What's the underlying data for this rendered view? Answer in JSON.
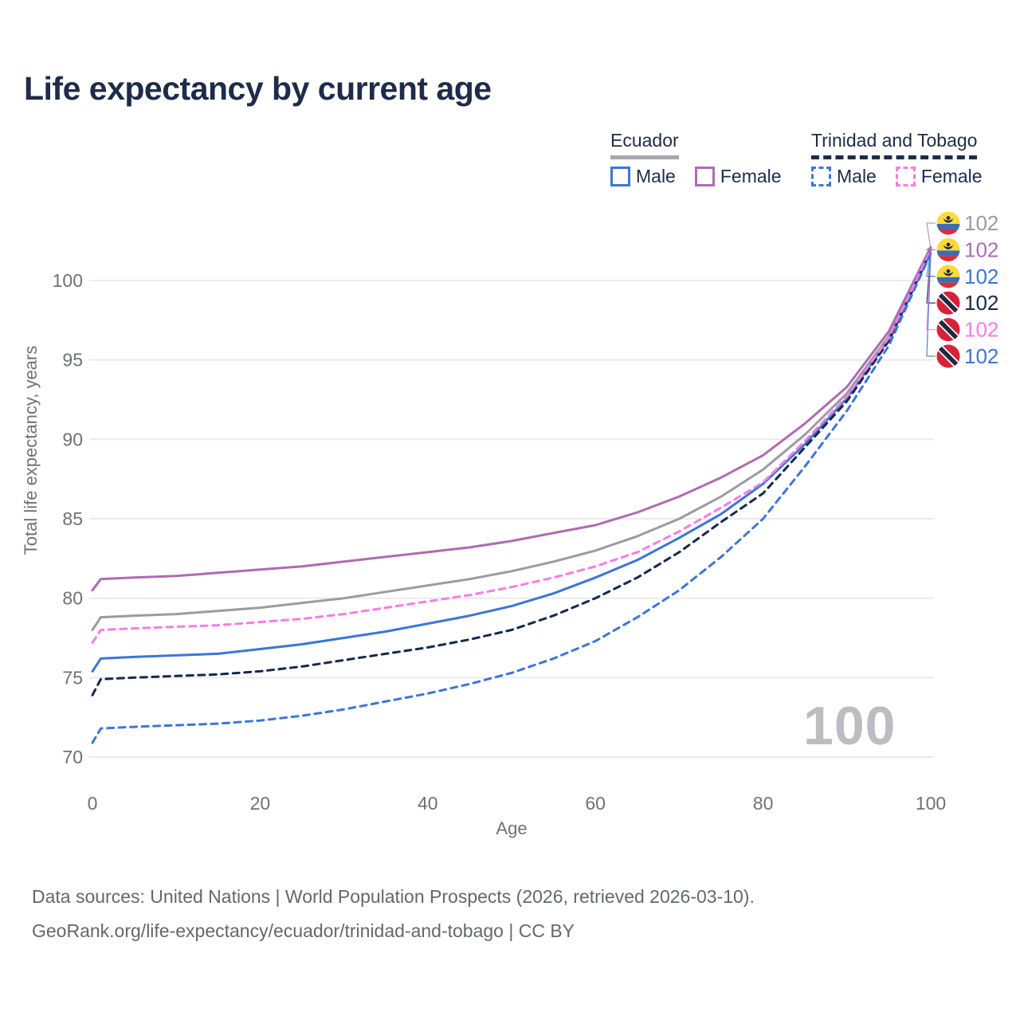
{
  "title": "Life expectancy by current age",
  "legend": {
    "groups": [
      {
        "label": "Ecuador",
        "line_style": "solid",
        "underline_color": "#a7a7ac",
        "items": [
          {
            "label": "Male",
            "color": "#3b76d8"
          },
          {
            "label": "Female",
            "color": "#ae6cb0"
          }
        ]
      },
      {
        "label": "Trinidad and Tobago",
        "line_style": "dashed",
        "underline_color": "#1c2b4a",
        "items": [
          {
            "label": "Male",
            "color": "#3b76d8"
          },
          {
            "label": "Female",
            "color": "#f87ce4"
          }
        ]
      }
    ]
  },
  "watermark": "100",
  "footer": {
    "line1": "Data sources: United Nations | World Population Prospects (2026, retrieved 2026-03-10).",
    "line2": "GeoRank.org/life-expectancy/ecuador/trinidad-and-tobago | CC BY"
  },
  "chart_data": {
    "type": "line",
    "title": "Life expectancy by current age",
    "xlabel": "Age",
    "ylabel": "Total life expectancy, years",
    "xlim": [
      0,
      100
    ],
    "ylim": [
      70,
      103
    ],
    "xticks": [
      0,
      20,
      40,
      60,
      80,
      100
    ],
    "yticks": [
      70,
      75,
      80,
      85,
      90,
      95,
      100
    ],
    "grid": true,
    "legend_position": "top-right",
    "x": [
      0,
      1,
      5,
      10,
      15,
      20,
      25,
      30,
      35,
      40,
      45,
      50,
      55,
      60,
      65,
      70,
      75,
      80,
      85,
      90,
      95,
      100
    ],
    "series": [
      {
        "id": "ecuador-total",
        "country": "Ecuador",
        "sex": "Both sexes",
        "color": "#9b9ba0",
        "dash": false,
        "flag": "ecuador",
        "end_label": "102",
        "values": [
          78.0,
          78.8,
          78.9,
          79.0,
          79.2,
          79.4,
          79.7,
          80.0,
          80.4,
          80.8,
          81.2,
          81.7,
          82.3,
          83.0,
          83.9,
          85.0,
          86.4,
          88.1,
          90.3,
          92.9,
          96.5,
          102.0
        ]
      },
      {
        "id": "ecuador-female",
        "country": "Ecuador",
        "sex": "Female",
        "color": "#ae6cb0",
        "dash": false,
        "flag": "ecuador",
        "end_label": "102",
        "values": [
          80.5,
          81.2,
          81.3,
          81.4,
          81.6,
          81.8,
          82.0,
          82.3,
          82.6,
          82.9,
          83.2,
          83.6,
          84.1,
          84.6,
          85.4,
          86.4,
          87.6,
          89.0,
          91.0,
          93.3,
          96.8,
          102.1
        ]
      },
      {
        "id": "ecuador-male",
        "country": "Ecuador",
        "sex": "Male",
        "color": "#3b76d8",
        "dash": false,
        "flag": "ecuador",
        "end_label": "102",
        "values": [
          75.4,
          76.2,
          76.3,
          76.4,
          76.5,
          76.8,
          77.1,
          77.5,
          77.9,
          78.4,
          78.9,
          79.5,
          80.3,
          81.3,
          82.4,
          83.8,
          85.3,
          87.2,
          89.7,
          92.6,
          96.3,
          101.9
        ]
      },
      {
        "id": "trinidad-and-tobago-total",
        "country": "Trinidad and Tobago",
        "sex": "Both sexes",
        "color": "#16294a",
        "dash": true,
        "flag": "trinidad-and-tobago",
        "end_label": "102",
        "values": [
          73.9,
          74.9,
          75.0,
          75.1,
          75.2,
          75.4,
          75.7,
          76.1,
          76.5,
          76.9,
          77.4,
          78.0,
          78.9,
          80.0,
          81.3,
          82.9,
          84.8,
          86.6,
          89.5,
          92.4,
          96.2,
          101.8
        ]
      },
      {
        "id": "trinidad-and-tobago-female",
        "country": "Trinidad and Tobago",
        "sex": "Female",
        "color": "#f87ce4",
        "dash": true,
        "flag": "trinidad-and-tobago",
        "end_label": "102",
        "values": [
          77.2,
          78.0,
          78.1,
          78.2,
          78.3,
          78.5,
          78.7,
          79.0,
          79.4,
          79.8,
          80.2,
          80.7,
          81.3,
          82.0,
          82.9,
          84.2,
          85.7,
          87.3,
          89.9,
          92.7,
          96.4,
          101.9
        ]
      },
      {
        "id": "trinidad-and-tobago-male",
        "country": "Trinidad and Tobago",
        "sex": "Male",
        "color": "#3b76d8",
        "dash": true,
        "flag": "trinidad-and-tobago",
        "end_label": "102",
        "values": [
          70.9,
          71.8,
          71.9,
          72.0,
          72.1,
          72.3,
          72.6,
          73.0,
          73.5,
          74.0,
          74.6,
          75.3,
          76.2,
          77.3,
          78.8,
          80.5,
          82.6,
          85.0,
          88.3,
          91.8,
          95.9,
          101.7
        ]
      }
    ],
    "flag_colors": {
      "ecuador": {
        "yellow": "#ffd83d",
        "blue": "#3d6cb4",
        "red": "#e0293a",
        "crest": "#1d2a44"
      },
      "trinidad-and-tobago": {
        "red": "#d62238",
        "band": "#1d2a44",
        "fimbriation": "#ffffff"
      }
    }
  }
}
